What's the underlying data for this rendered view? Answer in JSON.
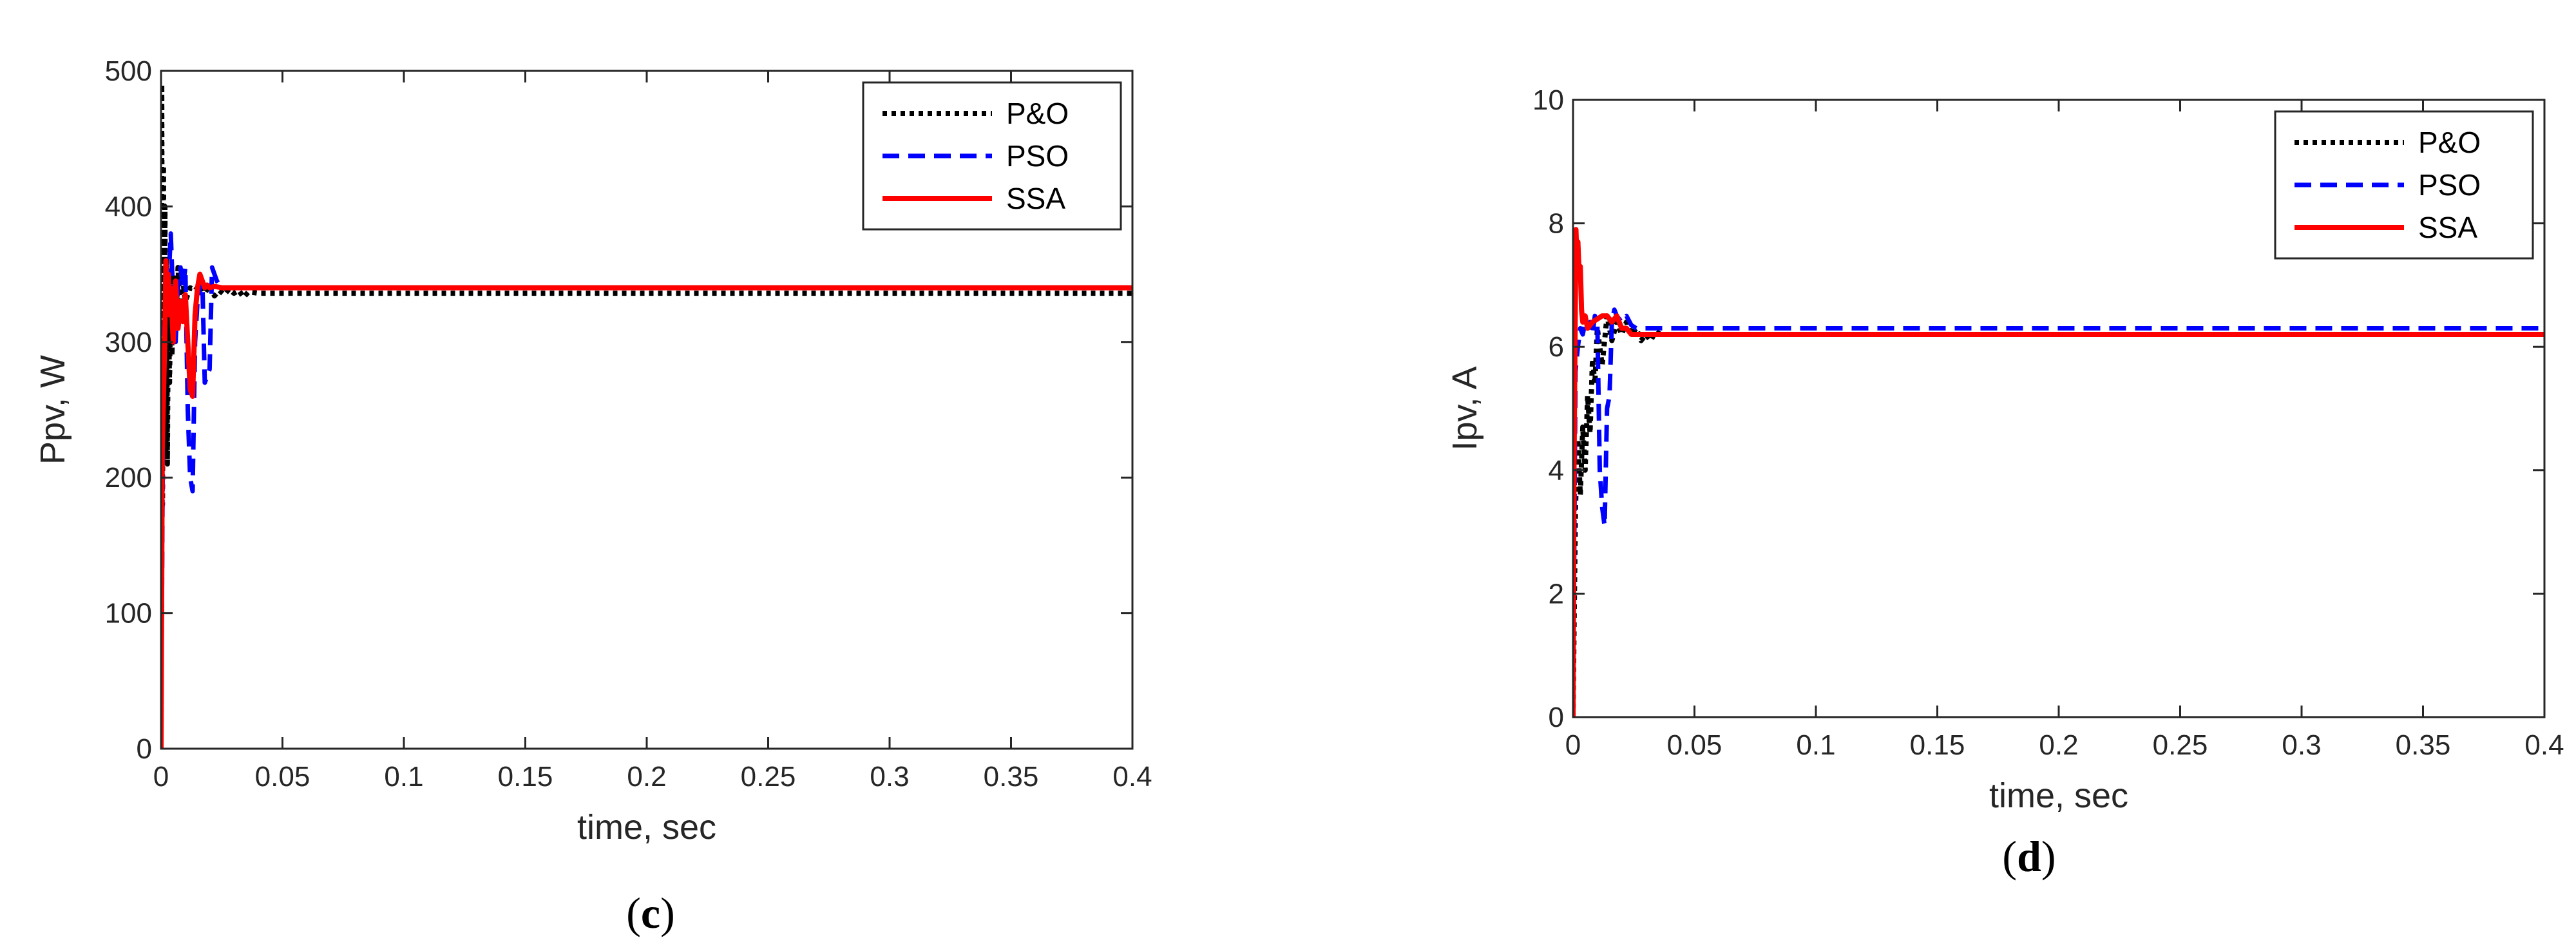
{
  "colors": {
    "po": "#000000",
    "pso": "#0000ff",
    "ssa": "#ff0000",
    "axis": "#262626"
  },
  "chart_data": [
    {
      "id": "c",
      "type": "line",
      "panel_open": "(",
      "panel_letter": "c",
      "panel_close": ")",
      "xlabel": "time, sec",
      "ylabel": "Ppv, W",
      "xlim": [
        0,
        0.4
      ],
      "ylim": [
        0,
        500
      ],
      "xticks": [
        0,
        0.05,
        0.1,
        0.15,
        0.2,
        0.25,
        0.3,
        0.35,
        0.4
      ],
      "xtick_labels": [
        "0",
        "0.05",
        "0.1",
        "0.15",
        "0.2",
        "0.25",
        "0.3",
        "0.35",
        "0.4"
      ],
      "yticks": [
        0,
        100,
        200,
        300,
        400,
        500
      ],
      "ytick_labels": [
        "0",
        "100",
        "200",
        "300",
        "400",
        "500"
      ],
      "grid": false,
      "legend": "top-right",
      "series": [
        {
          "name": "P&O",
          "style": "dotted",
          "x": [
            0,
            0.0003,
            0.0006,
            0.001,
            0.0013,
            0.0016,
            0.002,
            0.0023,
            0.0026,
            0.003,
            0.0035,
            0.004,
            0.0045,
            0.005,
            0.006,
            0.007,
            0.008,
            0.009,
            0.01,
            0.012,
            0.014,
            0.016,
            0.018,
            0.02,
            0.022,
            0.024,
            0.026,
            0.028,
            0.03,
            0.032,
            0.034,
            0.036,
            0.04,
            0.4
          ],
          "y": [
            0,
            490,
            180,
            430,
            250,
            400,
            220,
            360,
            210,
            330,
            270,
            345,
            290,
            350,
            310,
            355,
            320,
            345,
            330,
            340,
            338,
            342,
            336,
            342,
            334,
            338,
            335,
            339,
            336,
            338,
            333,
            337,
            336,
            336
          ]
        },
        {
          "name": "PSO",
          "style": "dashed",
          "x": [
            0,
            0.001,
            0.002,
            0.003,
            0.004,
            0.005,
            0.006,
            0.007,
            0.008,
            0.009,
            0.01,
            0.011,
            0.012,
            0.013,
            0.014,
            0.015,
            0.016,
            0.017,
            0.018,
            0.019,
            0.02,
            0.021,
            0.022,
            0.023,
            0.024,
            0.026,
            0.03,
            0.4
          ],
          "y": [
            0,
            300,
            330,
            340,
            380,
            330,
            300,
            340,
            355,
            340,
            355,
            250,
            200,
            190,
            300,
            330,
            340,
            345,
            270,
            275,
            280,
            355,
            350,
            345,
            342,
            340,
            340,
            340
          ]
        },
        {
          "name": "SSA",
          "style": "solid",
          "x": [
            0,
            0.0005,
            0.001,
            0.0015,
            0.002,
            0.0025,
            0.003,
            0.0035,
            0.004,
            0.005,
            0.006,
            0.007,
            0.008,
            0.009,
            0.01,
            0.011,
            0.012,
            0.013,
            0.014,
            0.015,
            0.016,
            0.017,
            0.018,
            0.019,
            0.02,
            0.022,
            0.025,
            0.03,
            0.4
          ],
          "y": [
            0,
            220,
            260,
            300,
            360,
            330,
            350,
            320,
            340,
            300,
            345,
            310,
            330,
            315,
            335,
            300,
            265,
            260,
            320,
            340,
            350,
            345,
            340,
            342,
            340,
            341,
            340,
            340,
            340
          ]
        }
      ]
    },
    {
      "id": "d",
      "type": "line",
      "panel_open": "(",
      "panel_letter": "d",
      "panel_close": ")",
      "xlabel": "time, sec",
      "ylabel": "Ipv, A",
      "xlim": [
        0,
        0.4
      ],
      "ylim": [
        0,
        10
      ],
      "xticks": [
        0,
        0.05,
        0.1,
        0.15,
        0.2,
        0.25,
        0.3,
        0.35,
        0.4
      ],
      "xtick_labels": [
        "0",
        "0.05",
        "0.1",
        "0.15",
        "0.2",
        "0.25",
        "0.3",
        "0.35",
        "0.4"
      ],
      "yticks": [
        0,
        2,
        4,
        6,
        8,
        10
      ],
      "ytick_labels": [
        "0",
        "2",
        "4",
        "6",
        "8",
        "10"
      ],
      "grid": false,
      "legend": "top-right",
      "series": [
        {
          "name": "P&O",
          "style": "dotted",
          "x": [
            0,
            0.001,
            0.002,
            0.003,
            0.004,
            0.005,
            0.006,
            0.007,
            0.008,
            0.009,
            0.01,
            0.012,
            0.014,
            0.016,
            0.018,
            0.02,
            0.022,
            0.024,
            0.026,
            0.028,
            0.03,
            0.032,
            0.034,
            0.036,
            0.04,
            0.4
          ],
          "y": [
            0,
            3.4,
            4.5,
            3.6,
            4.7,
            4.0,
            5.2,
            4.6,
            5.8,
            5.4,
            6.3,
            5.7,
            6.5,
            6.1,
            6.4,
            6.2,
            6.4,
            6.2,
            6.3,
            6.1,
            6.2,
            6.1,
            6.25,
            6.2,
            6.2,
            6.2
          ]
        },
        {
          "name": "PSO",
          "style": "dashed",
          "x": [
            0,
            0.001,
            0.002,
            0.003,
            0.004,
            0.005,
            0.006,
            0.007,
            0.008,
            0.009,
            0.01,
            0.011,
            0.012,
            0.013,
            0.014,
            0.015,
            0.016,
            0.017,
            0.018,
            0.02,
            0.022,
            0.024,
            0.026,
            0.03,
            0.4
          ],
          "y": [
            0,
            5.6,
            6.0,
            6.3,
            6.2,
            6.4,
            6.3,
            6.4,
            6.2,
            6.5,
            6.4,
            4.0,
            3.4,
            3.1,
            5.0,
            5.2,
            6.4,
            6.6,
            6.5,
            6.4,
            6.5,
            6.35,
            6.3,
            6.3,
            6.3
          ]
        },
        {
          "name": "SSA",
          "style": "solid",
          "x": [
            0,
            0.0004,
            0.0008,
            0.0012,
            0.0016,
            0.002,
            0.0025,
            0.003,
            0.0035,
            0.004,
            0.005,
            0.006,
            0.008,
            0.01,
            0.012,
            0.014,
            0.016,
            0.018,
            0.02,
            0.022,
            0.024,
            0.026,
            0.03,
            0.4
          ],
          "y": [
            0,
            4.0,
            6.0,
            7.9,
            7.4,
            7.7,
            7.2,
            7.3,
            6.6,
            6.4,
            6.5,
            6.3,
            6.4,
            6.45,
            6.5,
            6.5,
            6.4,
            6.5,
            6.3,
            6.3,
            6.2,
            6.2,
            6.2,
            6.2
          ]
        }
      ]
    }
  ]
}
